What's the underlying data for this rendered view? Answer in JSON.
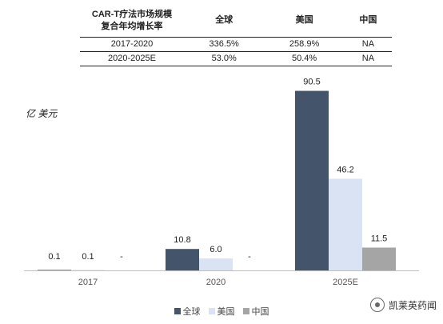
{
  "table": {
    "header": [
      "CAR-T疗法市场规模\n复合年均增长率",
      "全球",
      "美国",
      "中国"
    ],
    "rows": [
      [
        "2017-2020",
        "336.5%",
        "258.9%",
        "NA"
      ],
      [
        "2020-2025E",
        "53.0%",
        "50.4%",
        "NA"
      ]
    ]
  },
  "chart_data": {
    "type": "bar",
    "ylabel": "亿 美元",
    "categories": [
      "2017",
      "2020",
      "2025E"
    ],
    "ylim": [
      0,
      100
    ],
    "grid": false,
    "legend_position": "bottom-center",
    "series": [
      {
        "name": "全球",
        "color": "#44546a",
        "values": [
          0.1,
          10.8,
          90.5
        ],
        "labels": [
          "0.1",
          "10.8",
          "90.5"
        ]
      },
      {
        "name": "美国",
        "color": "#dae3f3",
        "values": [
          0.1,
          6.0,
          46.2
        ],
        "labels": [
          "0.1",
          "6.0",
          "46.2"
        ]
      },
      {
        "name": "中国",
        "color": "#a5a5a5",
        "values": [
          null,
          null,
          11.5
        ],
        "labels": [
          "-",
          "-",
          "11.5"
        ]
      }
    ]
  },
  "watermark": {
    "text": "凯莱英药闻",
    "icon": "wechat-channel-icon"
  }
}
